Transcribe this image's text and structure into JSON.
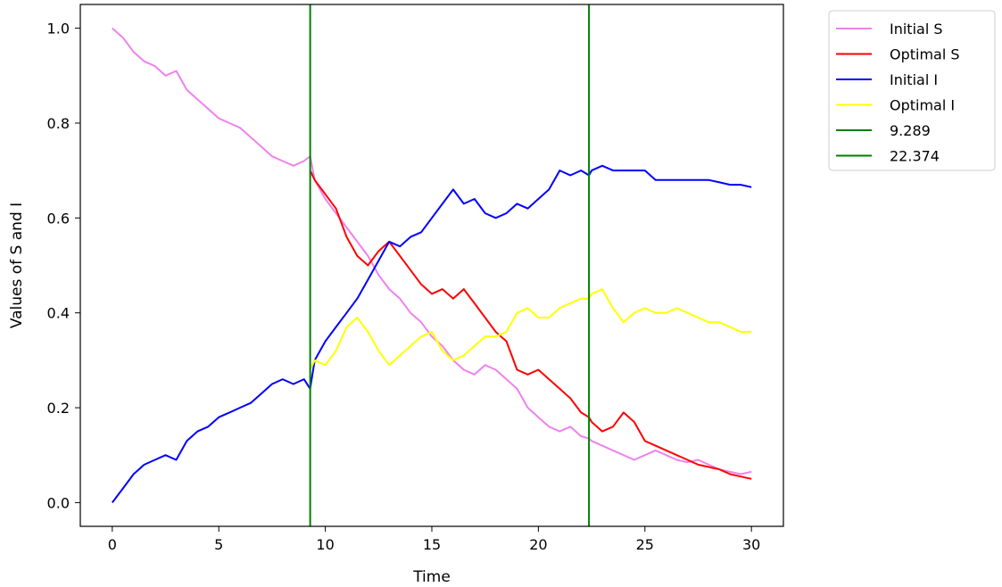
{
  "chart_data": {
    "type": "line",
    "xlabel": "Time",
    "ylabel": "Values of S and I",
    "xlim": [
      -1.5,
      31.5
    ],
    "ylim": [
      -0.05,
      1.05
    ],
    "xticks": [
      0,
      5,
      10,
      15,
      20,
      25,
      30
    ],
    "xtick_labels": [
      "0",
      "5",
      "10",
      "15",
      "20",
      "25",
      "30"
    ],
    "yticks": [
      0.0,
      0.2,
      0.4,
      0.6,
      0.8,
      1.0
    ],
    "ytick_labels": [
      "0.0",
      "0.2",
      "0.4",
      "0.6",
      "0.8",
      "1.0"
    ],
    "grid": false,
    "legend_position": "outside-right",
    "series": [
      {
        "name": "Initial S",
        "color": "#ee82ee",
        "x": [
          0,
          0.5,
          1,
          1.5,
          2,
          2.5,
          3,
          3.5,
          4,
          4.5,
          5,
          5.5,
          6,
          6.5,
          7,
          7.5,
          8,
          8.5,
          9,
          9.289,
          9.5,
          10,
          10.5,
          11,
          11.5,
          12,
          12.5,
          13,
          13.5,
          14,
          14.5,
          15,
          15.5,
          16,
          16.5,
          17,
          17.5,
          18,
          18.5,
          19,
          19.5,
          20,
          20.5,
          21,
          21.5,
          22,
          22.374,
          22.5,
          23,
          23.5,
          24,
          24.5,
          25,
          25.5,
          26,
          26.5,
          27,
          27.5,
          28,
          28.5,
          29,
          29.5,
          30
        ],
        "y": [
          1.0,
          0.98,
          0.95,
          0.93,
          0.92,
          0.9,
          0.91,
          0.87,
          0.85,
          0.83,
          0.81,
          0.8,
          0.79,
          0.77,
          0.75,
          0.73,
          0.72,
          0.71,
          0.72,
          0.73,
          0.68,
          0.64,
          0.61,
          0.58,
          0.55,
          0.52,
          0.48,
          0.45,
          0.43,
          0.4,
          0.38,
          0.35,
          0.33,
          0.3,
          0.28,
          0.27,
          0.29,
          0.28,
          0.26,
          0.24,
          0.2,
          0.18,
          0.16,
          0.15,
          0.16,
          0.14,
          0.135,
          0.13,
          0.12,
          0.11,
          0.1,
          0.09,
          0.1,
          0.11,
          0.1,
          0.09,
          0.085,
          0.09,
          0.08,
          0.07,
          0.065,
          0.06,
          0.065
        ]
      },
      {
        "name": "Optimal S",
        "color": "#ff0000",
        "x": [
          9.289,
          9.5,
          10,
          10.5,
          11,
          11.5,
          12,
          12.5,
          13,
          13.5,
          14,
          14.5,
          15,
          15.5,
          16,
          16.5,
          17,
          17.5,
          18,
          18.5,
          19,
          19.5,
          20,
          20.5,
          21,
          21.5,
          22,
          22.374,
          22.5,
          23,
          23.5,
          24,
          24.5,
          25,
          25.5,
          26,
          26.5,
          27,
          27.5,
          28,
          28.5,
          29,
          29.5,
          30
        ],
        "y": [
          0.7,
          0.68,
          0.65,
          0.62,
          0.56,
          0.52,
          0.5,
          0.53,
          0.55,
          0.52,
          0.49,
          0.46,
          0.44,
          0.45,
          0.43,
          0.45,
          0.42,
          0.39,
          0.36,
          0.34,
          0.28,
          0.27,
          0.28,
          0.26,
          0.24,
          0.22,
          0.19,
          0.18,
          0.17,
          0.15,
          0.16,
          0.19,
          0.17,
          0.13,
          0.12,
          0.11,
          0.1,
          0.09,
          0.08,
          0.075,
          0.07,
          0.06,
          0.055,
          0.05
        ]
      },
      {
        "name": "Initial I",
        "color": "#0000ff",
        "x": [
          0,
          0.5,
          1,
          1.5,
          2,
          2.5,
          3,
          3.5,
          4,
          4.5,
          5,
          5.5,
          6,
          6.5,
          7,
          7.5,
          8,
          8.5,
          9,
          9.289,
          9.5,
          10,
          10.5,
          11,
          11.5,
          12,
          12.5,
          13,
          13.5,
          14,
          14.5,
          15,
          15.5,
          16,
          16.5,
          17,
          17.5,
          18,
          18.5,
          19,
          19.5,
          20,
          20.5,
          21,
          21.5,
          22,
          22.374,
          22.5,
          23,
          23.5,
          24,
          24.5,
          25,
          25.5,
          26,
          26.5,
          27,
          27.5,
          28,
          28.5,
          29,
          29.5,
          30
        ],
        "y": [
          0.0,
          0.03,
          0.06,
          0.08,
          0.09,
          0.1,
          0.09,
          0.13,
          0.15,
          0.16,
          0.18,
          0.19,
          0.2,
          0.21,
          0.23,
          0.25,
          0.26,
          0.25,
          0.26,
          0.24,
          0.3,
          0.34,
          0.37,
          0.4,
          0.43,
          0.47,
          0.51,
          0.55,
          0.54,
          0.56,
          0.57,
          0.6,
          0.63,
          0.66,
          0.63,
          0.64,
          0.61,
          0.6,
          0.61,
          0.63,
          0.62,
          0.64,
          0.66,
          0.7,
          0.69,
          0.7,
          0.69,
          0.7,
          0.71,
          0.7,
          0.7,
          0.7,
          0.7,
          0.68,
          0.68,
          0.68,
          0.68,
          0.68,
          0.68,
          0.675,
          0.67,
          0.67,
          0.665
        ]
      },
      {
        "name": "Optimal I",
        "color": "#ffff00",
        "x": [
          9.289,
          9.5,
          10,
          10.5,
          11,
          11.5,
          12,
          12.5,
          13,
          13.5,
          14,
          14.5,
          15,
          15.5,
          16,
          16.5,
          17,
          17.5,
          18,
          18.5,
          19,
          19.5,
          20,
          20.5,
          21,
          21.5,
          22,
          22.374,
          22.5,
          23,
          23.5,
          24,
          24.5,
          25,
          25.5,
          26,
          26.5,
          27,
          27.5,
          28,
          28.5,
          29,
          29.5,
          30
        ],
        "y": [
          0.28,
          0.3,
          0.29,
          0.32,
          0.37,
          0.39,
          0.36,
          0.32,
          0.29,
          0.31,
          0.33,
          0.35,
          0.36,
          0.32,
          0.3,
          0.31,
          0.33,
          0.35,
          0.35,
          0.36,
          0.4,
          0.41,
          0.39,
          0.39,
          0.41,
          0.42,
          0.43,
          0.43,
          0.44,
          0.45,
          0.41,
          0.38,
          0.4,
          0.41,
          0.4,
          0.4,
          0.41,
          0.4,
          0.39,
          0.38,
          0.38,
          0.37,
          0.36,
          0.36
        ]
      },
      {
        "name": "9.289",
        "color": "#008000",
        "vline": 9.289
      },
      {
        "name": "22.374",
        "color": "#008000",
        "vline": 22.374
      }
    ]
  }
}
